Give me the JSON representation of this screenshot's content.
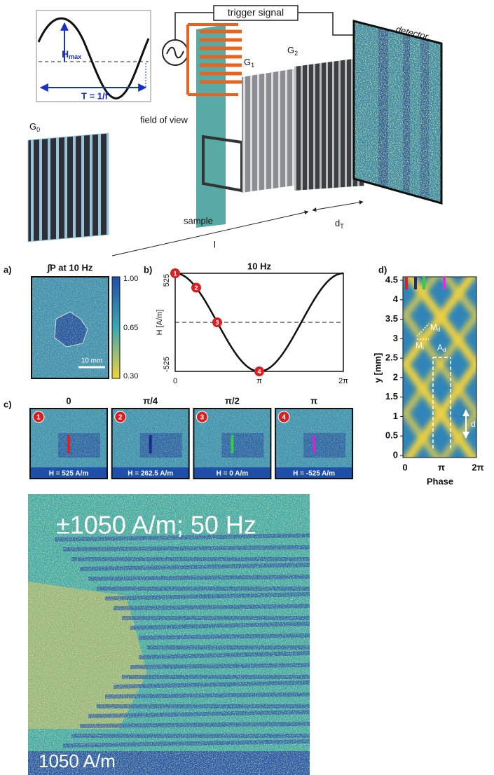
{
  "schematic": {
    "inset": {
      "amplitude_label": {
        "main": "H",
        "sub": "max"
      },
      "period_label": "T = 1/f"
    },
    "trigger_signal": "trigger signal",
    "detector": "detector",
    "gratings": [
      {
        "main": "G",
        "sub": "0"
      },
      {
        "main": "G",
        "sub": "1"
      },
      {
        "main": "G",
        "sub": "2"
      }
    ],
    "field_of_view": "field of view",
    "sample": "sample",
    "talbot_distance": {
      "main": "d",
      "sub": "T"
    },
    "distance": "l"
  },
  "panel_a": {
    "label": "a)",
    "title": "∫P at 10 Hz",
    "colorbar_ticks": [
      "1.00",
      "0.65",
      "0.30"
    ],
    "scale_bar": "10 mm"
  },
  "panel_b": {
    "label": "b)",
    "title": "10 Hz",
    "y_label": "H [A/m]",
    "y_ticks": [
      "525",
      "-525"
    ],
    "x_ticks": [
      "0",
      "π",
      "2π"
    ],
    "markers": [
      "1",
      "2",
      "3",
      "4"
    ]
  },
  "panel_c": {
    "label": "c)",
    "frames": [
      {
        "phase": "0",
        "marker": "1",
        "field": "H = 525 A/m"
      },
      {
        "phase": "π/4",
        "marker": "2",
        "field": "H = 262.5 A/m"
      },
      {
        "phase": "π/2",
        "marker": "3",
        "field": "H = 0 A/m"
      },
      {
        "phase": "π",
        "marker": "4",
        "field": "H = -525 A/m"
      }
    ]
  },
  "panel_d": {
    "label": "d)",
    "y_label": "y [mm]",
    "y_ticks": [
      "0",
      "0.5",
      "1",
      "1.5",
      "2",
      "2.5",
      "3",
      "3.5",
      "4",
      "4.5"
    ],
    "x_label": "Phase",
    "x_ticks": [
      "0",
      "π",
      "2π"
    ],
    "annotations": {
      "md": {
        "main": "M",
        "sub": "d"
      },
      "mi": {
        "main": "M",
        "sub": "i"
      },
      "ad": {
        "main": "A",
        "sub": "d"
      },
      "d": "d"
    }
  },
  "bottom_image": {
    "title": "±1050 A/m; 50 Hz",
    "field": "1050 A/m"
  }
}
